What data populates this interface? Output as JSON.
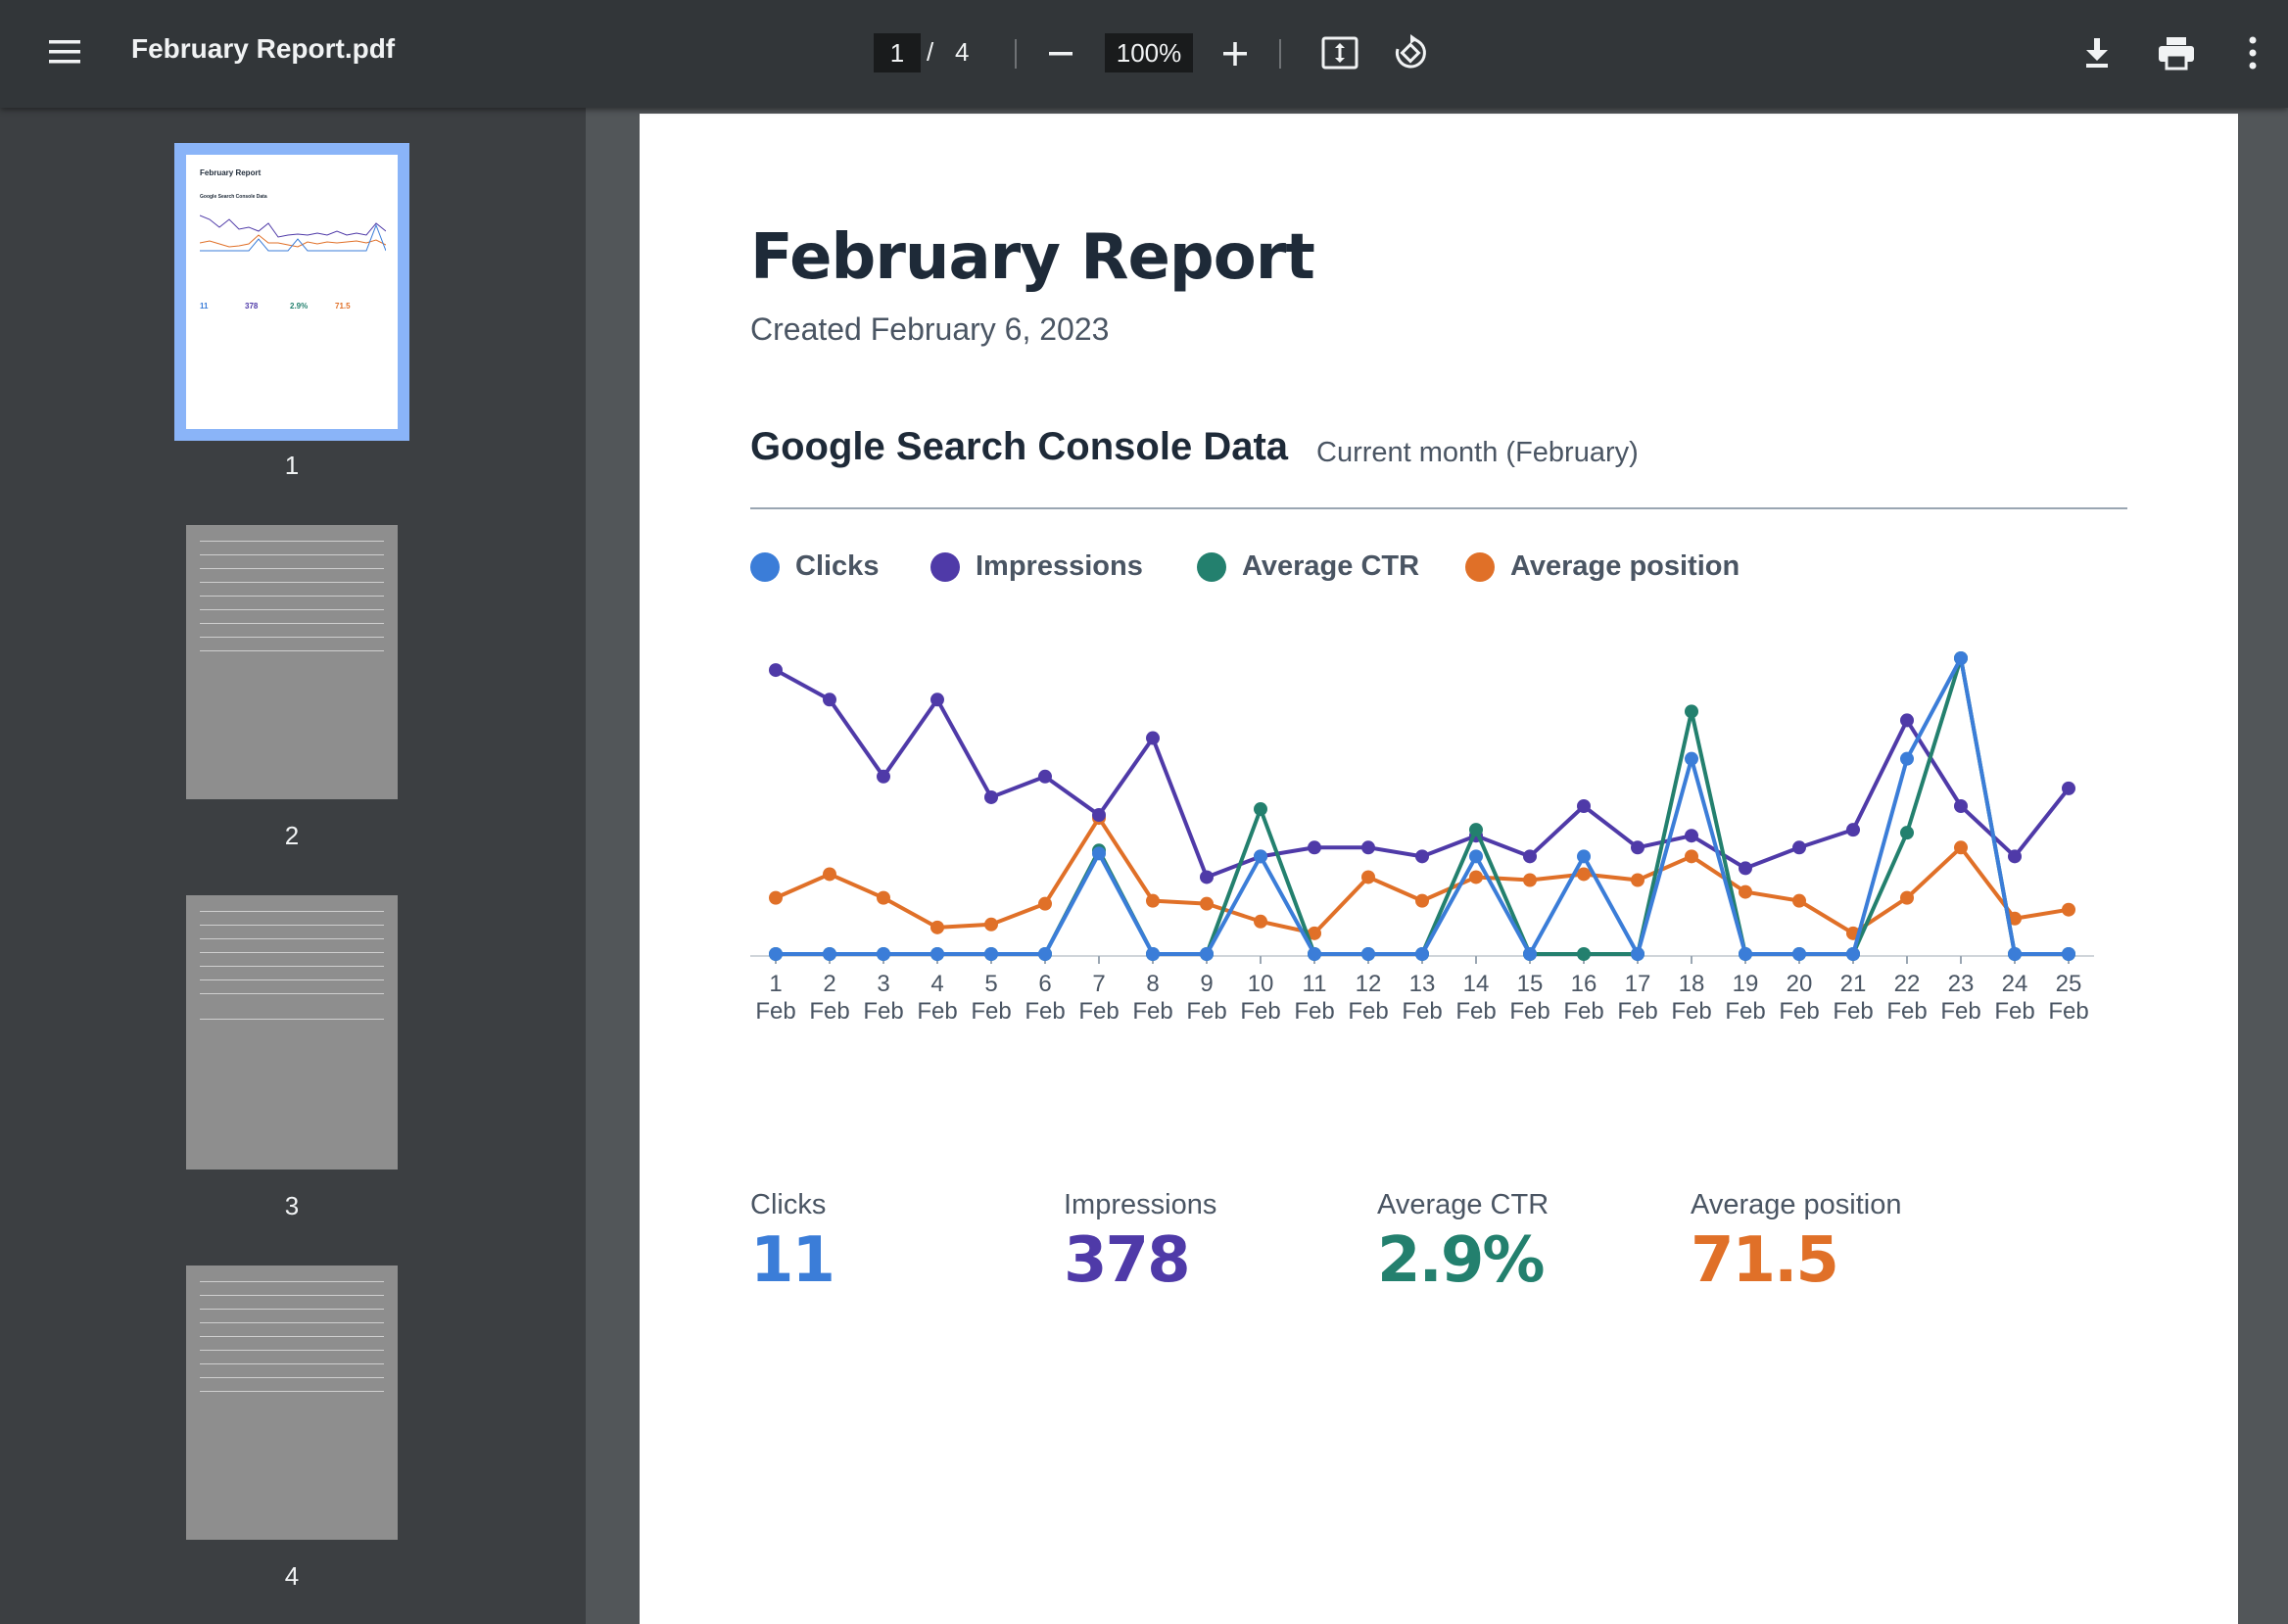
{
  "toolbar": {
    "file_name": "February Report.pdf",
    "page_current": "1",
    "page_separator": "/",
    "page_total": "4",
    "zoom": "100%",
    "icons": [
      "menu-icon",
      "minus-icon",
      "plus-icon",
      "fit-page-icon",
      "rotate-icon",
      "download-icon",
      "print-icon",
      "more-vert-icon"
    ]
  },
  "sidebar": {
    "thumbnails": [
      {
        "number": "1",
        "selected": true,
        "mini_title": "February Report",
        "mini_section": "Google Search Console Data",
        "mini_stats": [
          "11",
          "378",
          "2.9%",
          "71.5"
        ]
      },
      {
        "number": "2",
        "selected": false
      },
      {
        "number": "3",
        "selected": false
      },
      {
        "number": "4",
        "selected": false
      }
    ]
  },
  "report": {
    "title": "February Report",
    "created": "Created February 6, 2023",
    "section_title": "Google Search Console Data",
    "section_period": "Current month (February)"
  },
  "colors": {
    "clicks": "#3b7dd8",
    "impressions": "#4f3aa8",
    "ctr": "#23806e",
    "position": "#e07028"
  },
  "legend": [
    "Clicks",
    "Impressions",
    "Average CTR",
    "Average position"
  ],
  "stats": [
    {
      "label": "Clicks",
      "value": "11"
    },
    {
      "label": "Impressions",
      "value": "378"
    },
    {
      "label": "Average CTR",
      "value": "2.9%"
    },
    {
      "label": "Average position",
      "value": "71.5"
    }
  ],
  "chart_data": {
    "type": "line",
    "categories": [
      "1 Feb",
      "2 Feb",
      "3 Feb",
      "4 Feb",
      "5 Feb",
      "6 Feb",
      "7 Feb",
      "8 Feb",
      "9 Feb",
      "10 Feb",
      "11 Feb",
      "12 Feb",
      "13 Feb",
      "14 Feb",
      "15 Feb",
      "16 Feb",
      "17 Feb",
      "18 Feb",
      "19 Feb",
      "20 Feb",
      "21 Feb",
      "22 Feb",
      "23 Feb",
      "24 Feb",
      "25 Feb"
    ],
    "ylim": [
      0,
      100
    ],
    "y_axis_shown": false,
    "grid": false,
    "legend_position": "top-left",
    "series": [
      {
        "name": "Clicks",
        "values": [
          0,
          0,
          0,
          0,
          0,
          0,
          34,
          0,
          0,
          33,
          0,
          0,
          0,
          33,
          0,
          33,
          0,
          66,
          0,
          0,
          0,
          66,
          100,
          0,
          0
        ]
      },
      {
        "name": "Impressions",
        "values": [
          96,
          86,
          60,
          86,
          53,
          60,
          47,
          73,
          26,
          33,
          36,
          36,
          33,
          40,
          33,
          50,
          36,
          40,
          29,
          36,
          42,
          79,
          50,
          33,
          56
        ]
      },
      {
        "name": "Average CTR",
        "values": [
          0,
          0,
          0,
          0,
          0,
          0,
          35,
          0,
          0,
          49,
          0,
          0,
          0,
          42,
          0,
          0,
          0,
          82,
          0,
          0,
          0,
          41,
          100,
          0,
          0
        ]
      },
      {
        "name": "Average position",
        "values": [
          19,
          27,
          19,
          9,
          10,
          17,
          46,
          18,
          17,
          11,
          7,
          26,
          18,
          26,
          25,
          27,
          25,
          33,
          21,
          18,
          7,
          19,
          36,
          12,
          15
        ]
      }
    ]
  }
}
